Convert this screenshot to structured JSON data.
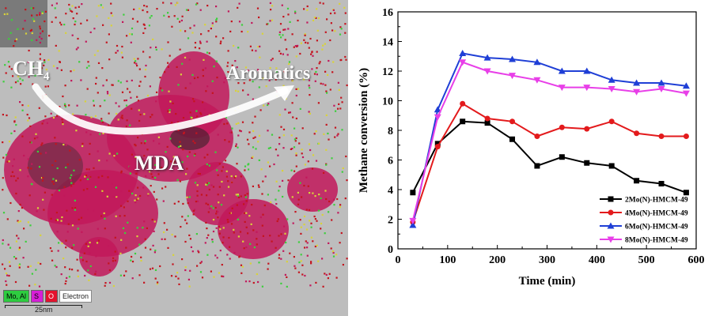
{
  "micrograph": {
    "label_reactant": "CH",
    "label_reactant_sub": "4",
    "label_product": "Aromatics",
    "label_reaction": "MDA",
    "legend": {
      "mo_al": "Mo, Al",
      "s": "S",
      "o": "O",
      "electron": "Electron"
    },
    "scale_label": "25nm",
    "colors": {
      "background": "#bdbdbd",
      "particle": "#c2185b",
      "dot_red": "#c4141e",
      "dot_green": "#3ccf3c",
      "dot_yellow": "#d8d23a",
      "arrow": "#ffffff"
    }
  },
  "chart_data": {
    "type": "line",
    "xlabel": "Time (min)",
    "ylabel": "Methane conversion (%)",
    "xlim": [
      0,
      600
    ],
    "ylim": [
      0,
      16
    ],
    "xticks": [
      0,
      100,
      200,
      300,
      400,
      500,
      600
    ],
    "yticks": [
      0,
      2,
      4,
      6,
      8,
      10,
      12,
      14,
      16
    ],
    "legend_position": "bottom-right",
    "grid": false,
    "x": [
      30,
      80,
      130,
      180,
      230,
      280,
      330,
      380,
      430,
      480,
      530,
      580
    ],
    "series": [
      {
        "name": "2Mo(N)-HMCM-49",
        "color": "#000000",
        "marker": "square",
        "values": [
          3.8,
          7.1,
          8.6,
          8.5,
          7.4,
          5.6,
          6.2,
          5.8,
          5.6,
          4.6,
          4.4,
          3.8
        ]
      },
      {
        "name": "4Mo(N)-HMCM-49",
        "color": "#e31a1c",
        "marker": "circle",
        "values": [
          1.8,
          6.9,
          9.8,
          8.8,
          8.6,
          7.6,
          8.2,
          8.1,
          8.6,
          7.8,
          7.6,
          7.6
        ]
      },
      {
        "name": "6Mo(N)-HMCM-49",
        "color": "#1f3fd6",
        "marker": "triangle-up",
        "values": [
          1.6,
          9.4,
          13.2,
          12.9,
          12.8,
          12.6,
          12.0,
          12.0,
          11.4,
          11.2,
          11.2,
          11.0
        ]
      },
      {
        "name": "8Mo(N)-HMCM-49",
        "color": "#e83fe8",
        "marker": "triangle-down",
        "values": [
          1.9,
          8.9,
          12.6,
          12.0,
          11.7,
          11.4,
          10.9,
          10.9,
          10.8,
          10.6,
          10.8,
          10.5
        ]
      }
    ]
  }
}
